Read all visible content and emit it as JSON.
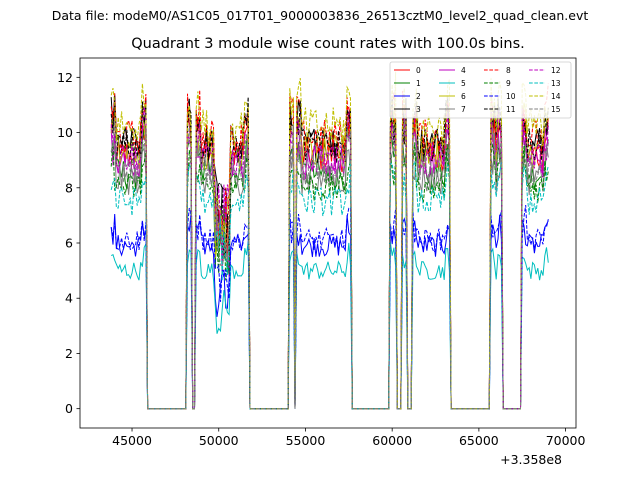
{
  "data_file_text": "Data file: modeM0/AS1C05_017T01_9000003836_26513cztM0_level2_quad_clean.evt",
  "chart_data": {
    "type": "line",
    "title": "Quadrant 3 module wise count rates with 100.0s bins.",
    "xlabel": "",
    "ylabel": "",
    "x_offset_label": "+3.358e8",
    "xlim": [
      42000,
      70600
    ],
    "ylim": [
      -0.7,
      12.7
    ],
    "xticks": [
      45000,
      50000,
      55000,
      60000,
      65000,
      70000
    ],
    "xtick_labels": [
      "45000",
      "50000",
      "55000",
      "60000",
      "65000",
      "70000"
    ],
    "yticks": [
      0,
      2,
      4,
      6,
      8,
      10,
      12
    ],
    "ytick_labels": [
      "0",
      "2",
      "4",
      "6",
      "8",
      "10",
      "12"
    ],
    "bin_size_s": 100,
    "segments_on": [
      [
        43800,
        45800
      ],
      [
        48200,
        48400
      ],
      [
        48700,
        51700
      ],
      [
        54100,
        54300
      ],
      [
        54500,
        57600
      ],
      [
        59900,
        60200
      ],
      [
        60600,
        60800
      ],
      [
        61200,
        63300
      ],
      [
        65700,
        66300
      ],
      [
        67500,
        69000
      ]
    ],
    "series": [
      {
        "name": "0",
        "color": "#ff0000",
        "dash": "solid",
        "mean": 9.2
      },
      {
        "name": "1",
        "color": "#008000",
        "dash": "solid",
        "mean": 8.5
      },
      {
        "name": "2",
        "color": "#0000ff",
        "dash": "solid",
        "mean": 5.9
      },
      {
        "name": "3",
        "color": "#000000",
        "dash": "solid",
        "mean": 9.6
      },
      {
        "name": "4",
        "color": "#bf00bf",
        "dash": "solid",
        "mean": 8.9
      },
      {
        "name": "5",
        "color": "#00bfbf",
        "dash": "solid",
        "mean": 5.0
      },
      {
        "name": "6",
        "color": "#bfbf00",
        "dash": "solid",
        "mean": 9.3
      },
      {
        "name": "7",
        "color": "#808080",
        "dash": "solid",
        "mean": 8.3
      },
      {
        "name": "8",
        "color": "#ff0000",
        "dash": "dashed",
        "mean": 9.8
      },
      {
        "name": "9",
        "color": "#008000",
        "dash": "dashed",
        "mean": 8.0
      },
      {
        "name": "10",
        "color": "#0000ff",
        "dash": "dashed",
        "mean": 6.1
      },
      {
        "name": "11",
        "color": "#000000",
        "dash": "dashed",
        "mean": 9.5
      },
      {
        "name": "12",
        "color": "#bf00bf",
        "dash": "dashed",
        "mean": 9.0
      },
      {
        "name": "13",
        "color": "#00bfbf",
        "dash": "dashed",
        "mean": 7.5
      },
      {
        "name": "14",
        "color": "#bfbf00",
        "dash": "dashed",
        "mean": 10.2
      },
      {
        "name": "15",
        "color": "#808080",
        "dash": "dashed",
        "mean": 8.7
      }
    ],
    "legend_position": "upper-right",
    "legend_columns": 4
  }
}
